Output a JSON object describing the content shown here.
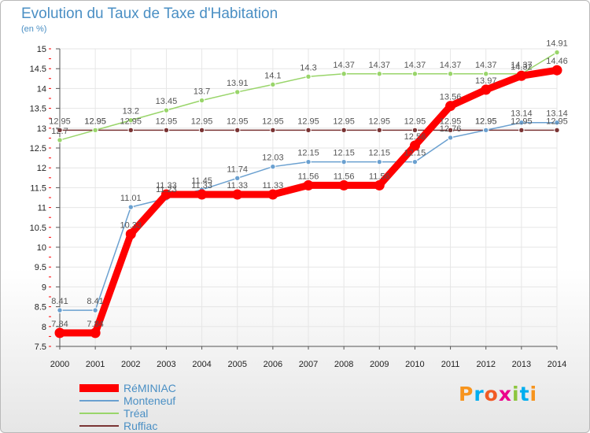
{
  "chart_data": {
    "type": "line",
    "title": "Evolution du Taux de Taxe d'Habitation",
    "ylabel": "(en %)",
    "xlabel": "",
    "categories": [
      "2000",
      "2001",
      "2002",
      "2003",
      "2004",
      "2005",
      "2006",
      "2007",
      "2008",
      "2009",
      "2010",
      "2011",
      "2012",
      "2013",
      "2014"
    ],
    "ylim": [
      7.5,
      15
    ],
    "yticks": [
      "7.5",
      "8",
      "8.5",
      "9",
      "9.5",
      "10",
      "10.5",
      "11",
      "11.5",
      "12",
      "12.5",
      "13",
      "13.5",
      "14",
      "14.5",
      "15"
    ],
    "series": [
      {
        "name": "RéMINIAC",
        "color": "#ff0000",
        "values": [
          7.84,
          7.84,
          10.33,
          11.33,
          11.33,
          11.33,
          11.33,
          11.56,
          11.56,
          11.56,
          12.56,
          13.56,
          13.97,
          14.32,
          14.46
        ],
        "labels": [
          "7.84",
          "7.84",
          "10.33",
          "11.33",
          "11.33",
          "11.33",
          "11.33",
          "11.56",
          "11.56",
          "11.56",
          "12.56",
          "13.56",
          "13.97",
          "14.32",
          "14.46"
        ]
      },
      {
        "name": "Monteneuf",
        "color": "#6aa0d0",
        "values": [
          8.41,
          8.41,
          11.01,
          11.23,
          11.45,
          11.74,
          12.03,
          12.15,
          12.15,
          12.15,
          12.15,
          12.76,
          12.95,
          13.14,
          13.14
        ],
        "labels": [
          "8.41",
          "8.41",
          "11.01",
          "11.23",
          "11.45",
          "11.74",
          "12.03",
          "12.15",
          "12.15",
          "12.15",
          "12.15",
          "12.76",
          "12.95",
          "13.14",
          "13.14"
        ]
      },
      {
        "name": "Tréal",
        "color": "#99d56a",
        "values": [
          12.7,
          12.95,
          13.2,
          13.45,
          13.7,
          13.91,
          14.1,
          14.3,
          14.37,
          14.37,
          14.37,
          14.37,
          14.37,
          14.37,
          14.91
        ],
        "labels": [
          "12.7",
          "12.95",
          "13.2",
          "13.45",
          "13.7",
          "13.91",
          "14.1",
          "14.3",
          "14.37",
          "14.37",
          "14.37",
          "14.37",
          "14.37",
          "14.37",
          "14.91"
        ]
      },
      {
        "name": "Ruffiac",
        "color": "#7a3434",
        "values": [
          12.95,
          12.95,
          12.95,
          12.95,
          12.95,
          12.95,
          12.95,
          12.95,
          12.95,
          12.95,
          12.95,
          12.95,
          12.95,
          12.95,
          12.95
        ],
        "labels": [
          "12.95",
          "12.95",
          "12.95",
          "12.95",
          "12.95",
          "12.95",
          "12.95",
          "12.95",
          "12.95",
          "12.95",
          "12.95",
          "12.95",
          "12.95",
          "12.95",
          "12.95"
        ]
      }
    ]
  },
  "logo": {
    "letters": [
      "P",
      "r",
      "o",
      "x",
      "i",
      "t",
      "i"
    ],
    "colors": [
      "#f7941d",
      "#00aeef",
      "#f15a24",
      "#ec008c",
      "#8dc63f",
      "#00aeef",
      "#f7941d"
    ]
  }
}
